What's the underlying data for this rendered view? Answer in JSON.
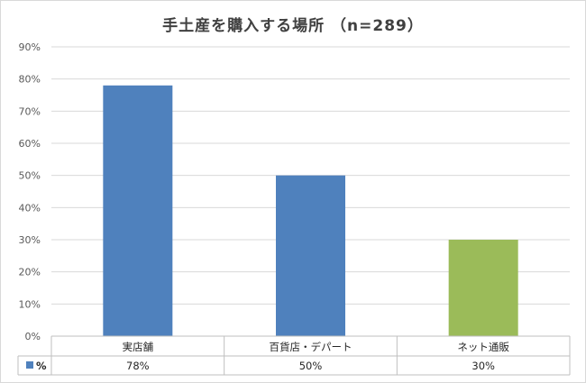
{
  "chart_data": {
    "type": "bar",
    "title": "手土産を購入する場所 （n=289）",
    "categories": [
      "実店舗",
      "百貨店・デパート",
      "ネット通販"
    ],
    "series": [
      {
        "name": "%",
        "values": [
          78,
          50,
          30
        ],
        "value_labels": [
          "78%",
          "50%",
          "30%"
        ],
        "colors": [
          "#4f81bd",
          "#4f81bd",
          "#9bbb59"
        ]
      }
    ],
    "y_ticks": [
      "0%",
      "10%",
      "20%",
      "30%",
      "40%",
      "50%",
      "60%",
      "70%",
      "80%",
      "90%"
    ],
    "ylim": [
      0,
      90
    ],
    "grid": true,
    "data_table": true,
    "legend_color": "#4f81bd"
  }
}
